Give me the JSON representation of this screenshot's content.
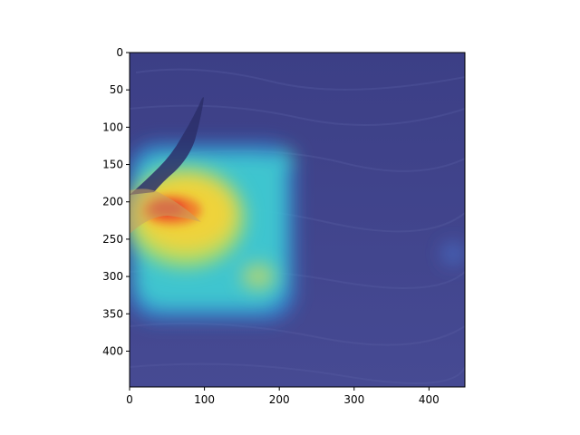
{
  "image": {
    "subject": "seagull-over-sea-icon",
    "overlay": "attention-heatmap",
    "colormap": "jet",
    "colors": {
      "sea_base": "#3b3f8a",
      "hot": "#e8302a",
      "warm": "#f2d23a",
      "cool": "#44d6c8"
    }
  },
  "axes": {
    "x_ticks": [
      {
        "value": 0,
        "label": "0"
      },
      {
        "value": 100,
        "label": "100"
      },
      {
        "value": 200,
        "label": "200"
      },
      {
        "value": 300,
        "label": "300"
      },
      {
        "value": 400,
        "label": "400"
      }
    ],
    "y_ticks": [
      {
        "value": 0,
        "label": "0"
      },
      {
        "value": 50,
        "label": "50"
      },
      {
        "value": 100,
        "label": "100"
      },
      {
        "value": 150,
        "label": "150"
      },
      {
        "value": 200,
        "label": "200"
      },
      {
        "value": 250,
        "label": "250"
      },
      {
        "value": 300,
        "label": "300"
      },
      {
        "value": 350,
        "label": "350"
      },
      {
        "value": 400,
        "label": "400"
      }
    ],
    "xlim": [
      0,
      448
    ],
    "ylim": [
      448,
      0
    ]
  }
}
